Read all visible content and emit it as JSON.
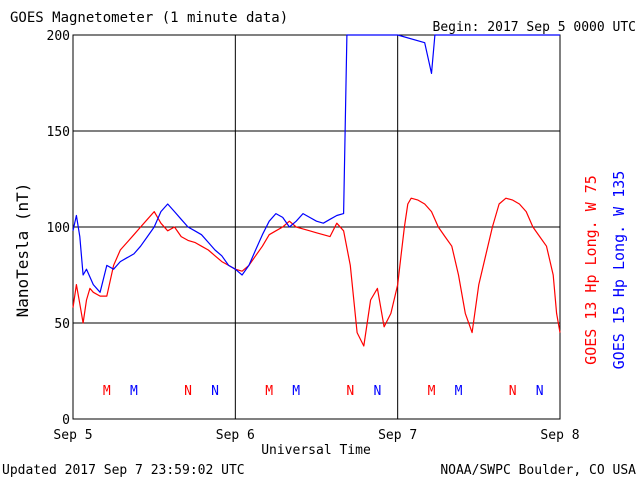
{
  "header": {
    "title": "GOES Magnetometer (1 minute data)",
    "begin": "Begin:  2017 Sep 5 0000 UTC"
  },
  "footer": {
    "updated": "Updated 2017 Sep  7 23:59:02 UTC",
    "credit": "NOAA/SWPC Boulder, CO USA"
  },
  "colors": {
    "goes13": "#ff0000",
    "goes15": "#0000ff",
    "grid": "#000000"
  },
  "chart_data": {
    "type": "line",
    "title": "GOES Magnetometer (1 minute data)",
    "xlabel": "Universal Time",
    "ylabel": "NanoTesla (nT)",
    "xlim": [
      0,
      72
    ],
    "ylim": [
      0,
      200
    ],
    "grid": true,
    "x_ticks": [
      {
        "hour": 0,
        "label": "Sep 5"
      },
      {
        "hour": 24,
        "label": "Sep 6"
      },
      {
        "hour": 48,
        "label": "Sep 7"
      },
      {
        "hour": 72,
        "label": "Sep 8"
      }
    ],
    "y_ticks": [
      0,
      50,
      100,
      150,
      200
    ],
    "series": [
      {
        "name": "GOES 13 Hp  Long. W 75",
        "color": "#ff0000",
        "x_hours": [
          0,
          0.5,
          1,
          1.5,
          2,
          2.5,
          3,
          4,
          5,
          6,
          7,
          8,
          9,
          10,
          11,
          12,
          13,
          14,
          15,
          16,
          17,
          18,
          19,
          20,
          21,
          22,
          23,
          24,
          25,
          26,
          27,
          28,
          29,
          30,
          31,
          32,
          33,
          34,
          35,
          36,
          37,
          38,
          39,
          40,
          41,
          42,
          43,
          44,
          45,
          46,
          47,
          48,
          48.5,
          49,
          49.5,
          50,
          51,
          52,
          53,
          54,
          55,
          56,
          57,
          58,
          59,
          60,
          61,
          62,
          63,
          64,
          65,
          66,
          67,
          68,
          69,
          70,
          71,
          71.5,
          72
        ],
        "values": [
          58,
          70,
          60,
          50,
          62,
          68,
          66,
          64,
          64,
          80,
          88,
          92,
          96,
          100,
          104,
          108,
          102,
          98,
          100,
          95,
          93,
          92,
          90,
          88,
          85,
          82,
          80,
          78,
          77,
          80,
          85,
          90,
          96,
          98,
          100,
          103,
          100,
          99,
          98,
          97,
          96,
          95,
          102,
          98,
          80,
          45,
          38,
          62,
          68,
          48,
          55,
          70,
          85,
          100,
          112,
          115,
          114,
          112,
          108,
          100,
          95,
          90,
          75,
          55,
          45,
          70,
          85,
          100,
          112,
          115,
          114,
          112,
          108,
          100,
          95,
          90,
          75,
          55,
          45
        ],
        "axis_label": "GOES 13 Hp  Long. W 75"
      },
      {
        "name": "GOES 15 Hp  Long. W 135",
        "color": "#0000ff",
        "x_hours": [
          0,
          0.5,
          1,
          1.5,
          2,
          3,
          4,
          5,
          6,
          7,
          8,
          9,
          10,
          11,
          12,
          13,
          14,
          15,
          16,
          17,
          18,
          19,
          20,
          21,
          22,
          23,
          24,
          25,
          26,
          27,
          28,
          29,
          30,
          31,
          32,
          33,
          34,
          35,
          36,
          37,
          38,
          39,
          40,
          40.5,
          41,
          42,
          43,
          44,
          45,
          46,
          47,
          48,
          52,
          53,
          53.5,
          54,
          55,
          56,
          57,
          58,
          59,
          60,
          61,
          62,
          63,
          64,
          65,
          66,
          67,
          68,
          69,
          70,
          71,
          71.5,
          72
        ],
        "values": [
          98,
          106,
          95,
          75,
          78,
          70,
          66,
          80,
          78,
          82,
          84,
          86,
          90,
          95,
          100,
          108,
          112,
          108,
          104,
          100,
          98,
          96,
          92,
          88,
          85,
          80,
          78,
          75,
          80,
          88,
          96,
          103,
          107,
          105,
          100,
          103,
          107,
          105,
          103,
          102,
          104,
          106,
          107,
          200,
          200,
          200,
          200,
          200,
          200,
          200,
          200,
          200,
          196,
          180,
          200,
          200,
          200,
          200,
          200,
          200,
          200,
          200,
          200,
          200,
          200,
          200,
          200,
          200,
          200,
          200,
          200,
          200,
          200,
          200,
          200
        ],
        "axis_label": "GOES 15 Hp  Long. W 135"
      }
    ],
    "markers": [
      {
        "label": "M",
        "color": "#ff0000",
        "x_hours": 5
      },
      {
        "label": "M",
        "color": "#0000ff",
        "x_hours": 9
      },
      {
        "label": "N",
        "color": "#ff0000",
        "x_hours": 17
      },
      {
        "label": "N",
        "color": "#0000ff",
        "x_hours": 21
      },
      {
        "label": "M",
        "color": "#ff0000",
        "x_hours": 29
      },
      {
        "label": "M",
        "color": "#0000ff",
        "x_hours": 33
      },
      {
        "label": "N",
        "color": "#ff0000",
        "x_hours": 41
      },
      {
        "label": "N",
        "color": "#0000ff",
        "x_hours": 45
      },
      {
        "label": "M",
        "color": "#ff0000",
        "x_hours": 53
      },
      {
        "label": "M",
        "color": "#0000ff",
        "x_hours": 57
      },
      {
        "label": "N",
        "color": "#ff0000",
        "x_hours": 65
      },
      {
        "label": "N",
        "color": "#0000ff",
        "x_hours": 69
      }
    ],
    "marker_level": 15
  }
}
